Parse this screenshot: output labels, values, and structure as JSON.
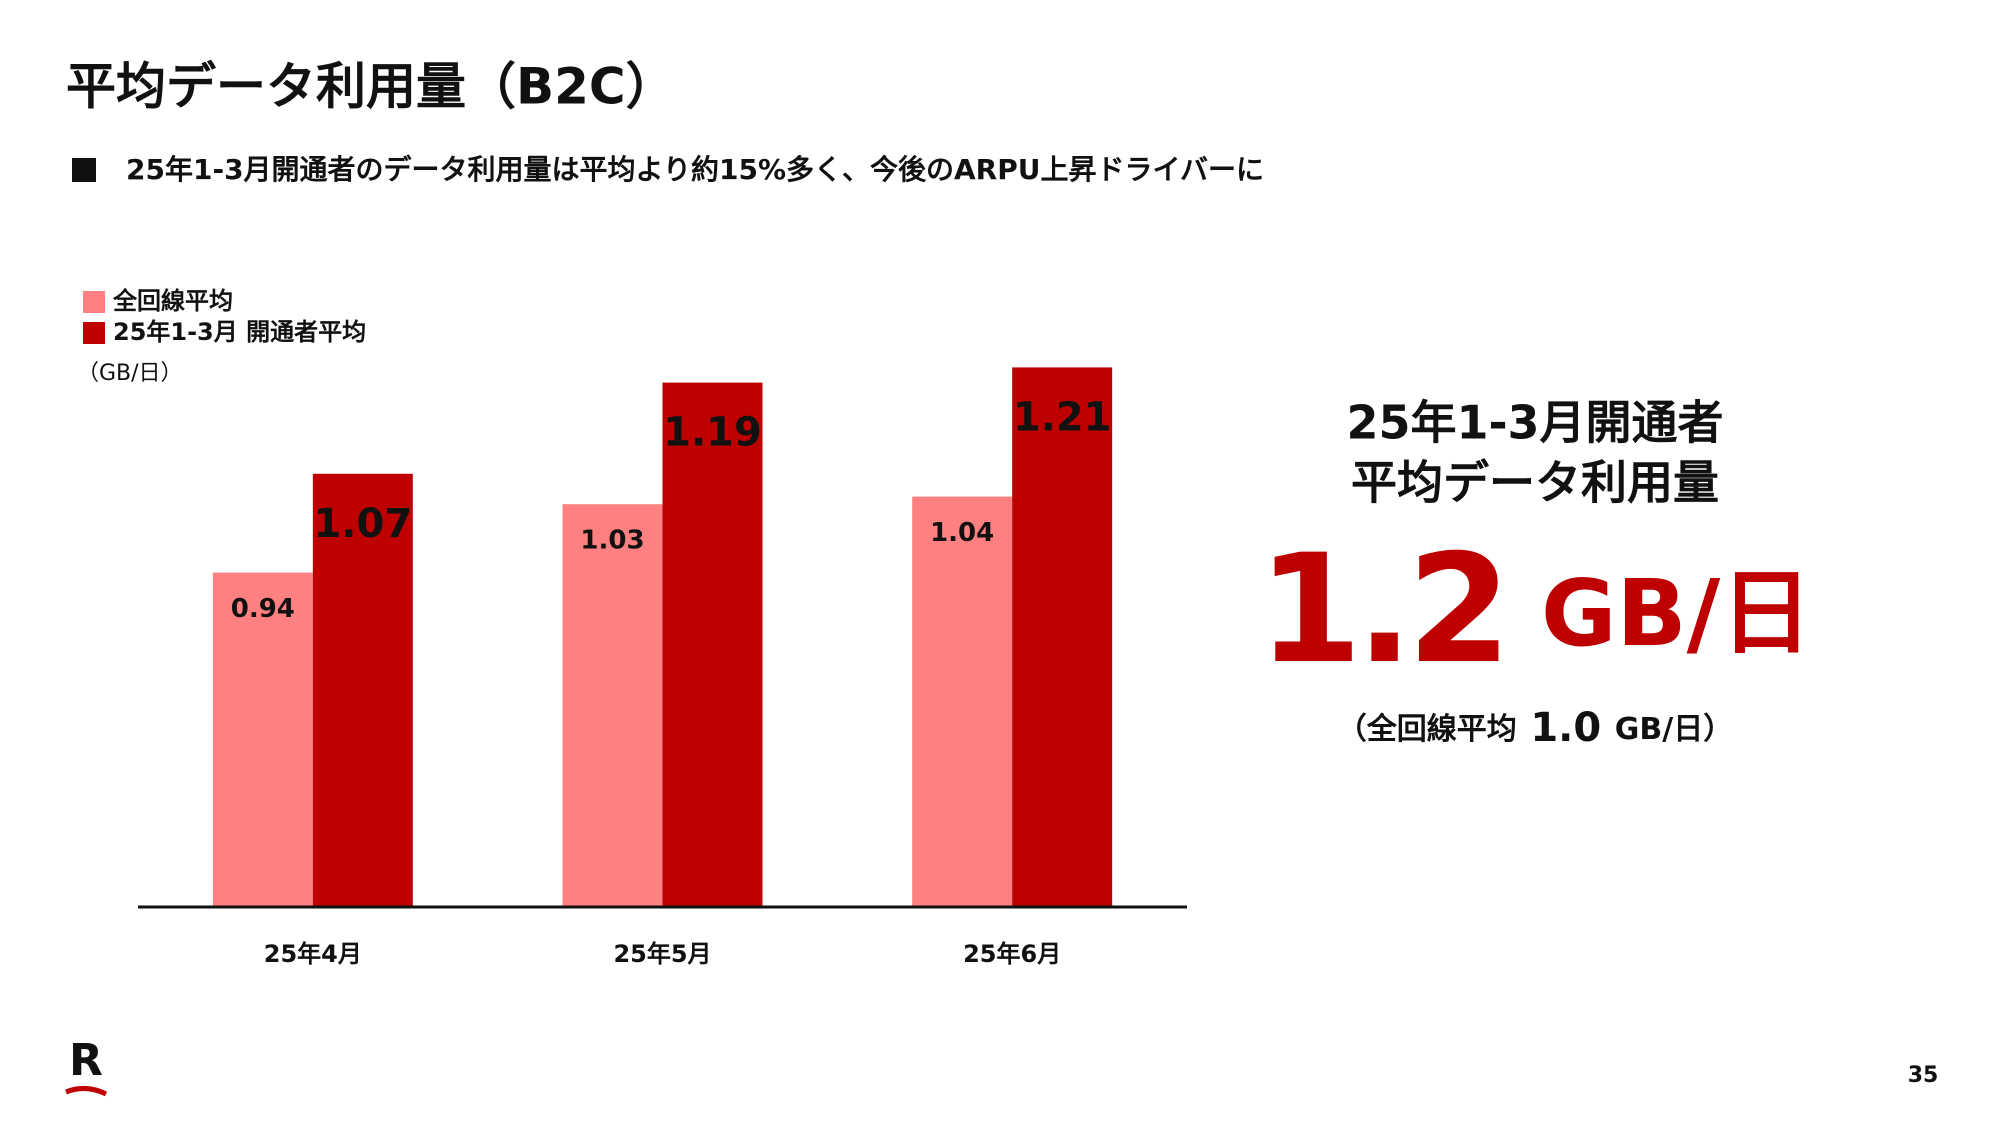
{
  "title": "平均データ利用量（B2C）",
  "bullet": "25年1-3月開通者のデータ利用量は平均より約15%多く、今後のARPU上昇ドライバーに",
  "chart_data": {
    "type": "bar",
    "unit": "（GB/日）",
    "categories": [
      "25年4月",
      "25年5月",
      "25年6月"
    ],
    "series": [
      {
        "name": "全回線平均",
        "color": "#ff8080",
        "values": [
          0.94,
          1.03,
          1.04
        ]
      },
      {
        "name": "25年1-3月 開通者平均",
        "color": "#bf0000",
        "values": [
          1.07,
          1.19,
          1.21
        ]
      }
    ],
    "ylim": [
      0.5,
      1.3
    ],
    "grid": false
  },
  "callout": {
    "line1": "25年1-3月開通者",
    "line2": "平均データ利用量",
    "value": "1.2",
    "unit": "GB/日",
    "note_prefix": "（全回線平均",
    "note_value": "1.0",
    "note_unit": "GB/日）"
  },
  "logo": "R",
  "page_number": "35"
}
